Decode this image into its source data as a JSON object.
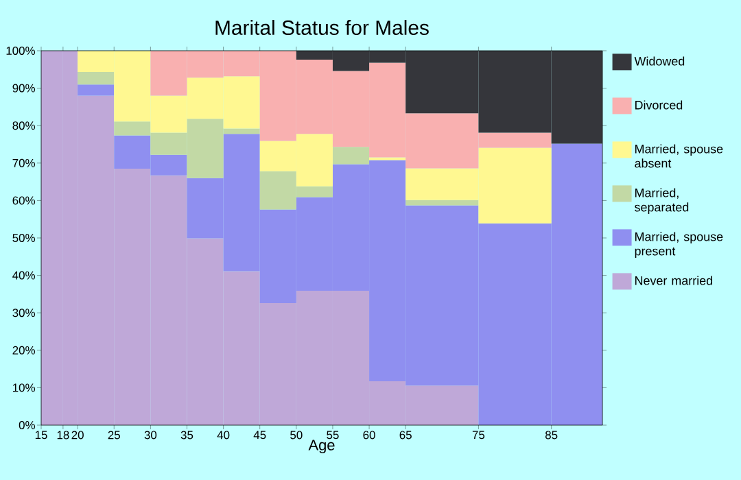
{
  "chart_data": {
    "type": "bar",
    "stacked": true,
    "title": "Marital Status for Males",
    "xlabel": "Age",
    "x": [
      16.5,
      19,
      22.5,
      27.5,
      32.5,
      37.5,
      42.5,
      47.5,
      52.5,
      57.5,
      62.5,
      70,
      80,
      88.5
    ],
    "xlim": [
      15,
      92
    ],
    "xticks": [
      15,
      18,
      20,
      25,
      30,
      35,
      40,
      45,
      50,
      55,
      60,
      65,
      75,
      85
    ],
    "ylim": [
      0,
      100
    ],
    "yticks": [
      {
        "value": 0,
        "label": "0%"
      },
      {
        "value": 10,
        "label": "10%"
      },
      {
        "value": 20,
        "label": "20%"
      },
      {
        "value": 30,
        "label": "30%"
      },
      {
        "value": 40,
        "label": "40%"
      },
      {
        "value": 50,
        "label": "50%"
      },
      {
        "value": 60,
        "label": "60%"
      },
      {
        "value": 70,
        "label": "70%"
      },
      {
        "value": 80,
        "label": "80%"
      },
      {
        "value": 90,
        "label": "90%"
      },
      {
        "value": 100,
        "label": "100%"
      }
    ],
    "legend": "right",
    "series": [
      {
        "name": "Never married",
        "color": "#bfa8d8",
        "values": [
          100,
          100,
          88,
          68.5,
          66.7,
          49.9,
          41.1,
          32.6,
          35.9,
          35.9,
          11.7,
          10.6,
          0,
          0
        ]
      },
      {
        "name": "Married, spouse present",
        "color": "#8f8ff0",
        "values": [
          0,
          0,
          3,
          8.9,
          5.5,
          16.1,
          36.7,
          25,
          25,
          33.8,
          59.1,
          48.1,
          53.9,
          75.2
        ]
      },
      {
        "name": "Married, separated",
        "color": "#c2d9a5",
        "values": [
          0,
          0,
          3.3,
          3.7,
          5.9,
          15.8,
          1.4,
          10.2,
          2.9,
          4.6,
          0,
          1.4,
          0,
          0
        ]
      },
      {
        "name": "Married, spouse absent",
        "color": "#fff891",
        "values": [
          0,
          0,
          5.7,
          18.9,
          9.9,
          11,
          14,
          8.1,
          14,
          0,
          0.7,
          8.5,
          20.2,
          0
        ]
      },
      {
        "name": "Divorced",
        "color": "#f9b0b0",
        "values": [
          0,
          0,
          0,
          0,
          12,
          7.2,
          6.8,
          24.1,
          19.8,
          20.3,
          25.3,
          14.7,
          4,
          0
        ]
      },
      {
        "name": "Widowed",
        "color": "#35363b",
        "values": [
          0,
          0,
          0,
          0,
          0,
          0,
          0,
          0,
          2.4,
          5.4,
          3.2,
          16.7,
          21.9,
          24.8
        ]
      }
    ]
  }
}
